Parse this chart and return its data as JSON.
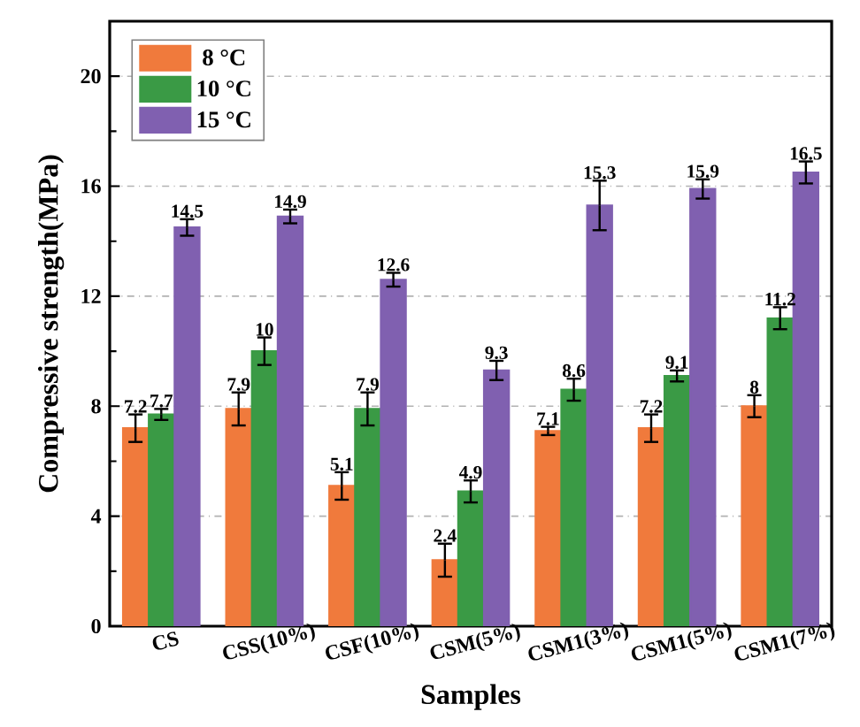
{
  "chart_data": {
    "type": "bar",
    "xlabel": "Samples",
    "ylabel": "Compressive strength(MPa)",
    "categories": [
      "CS",
      "CSS(10%)",
      "CSF(10%)",
      "CSM(5%)",
      "CSM1(3%)",
      "CSM1(5%)",
      "CSM1(7%)"
    ],
    "series": [
      {
        "name": "8 °C",
        "color": "#f07a3c",
        "values": [
          7.2,
          7.9,
          5.1,
          2.4,
          7.1,
          7.2,
          8
        ],
        "errors": [
          0.5,
          0.6,
          0.5,
          0.6,
          0.15,
          0.5,
          0.4
        ]
      },
      {
        "name": "10 °C",
        "color": "#3a9a45",
        "values": [
          7.7,
          10,
          7.9,
          4.9,
          8.6,
          9.1,
          11.2
        ],
        "errors": [
          0.2,
          0.5,
          0.6,
          0.4,
          0.4,
          0.2,
          0.4
        ]
      },
      {
        "name": "15 °C",
        "color": "#8060b0",
        "values": [
          14.5,
          14.9,
          12.6,
          9.3,
          15.3,
          15.9,
          16.5
        ],
        "errors": [
          0.3,
          0.25,
          0.25,
          0.35,
          0.9,
          0.35,
          0.4
        ]
      }
    ],
    "ylim": [
      0,
      22
    ],
    "yticks": [
      0,
      4,
      8,
      12,
      16,
      20
    ],
    "grid": "y",
    "legend": "top left",
    "data_labels": true
  }
}
